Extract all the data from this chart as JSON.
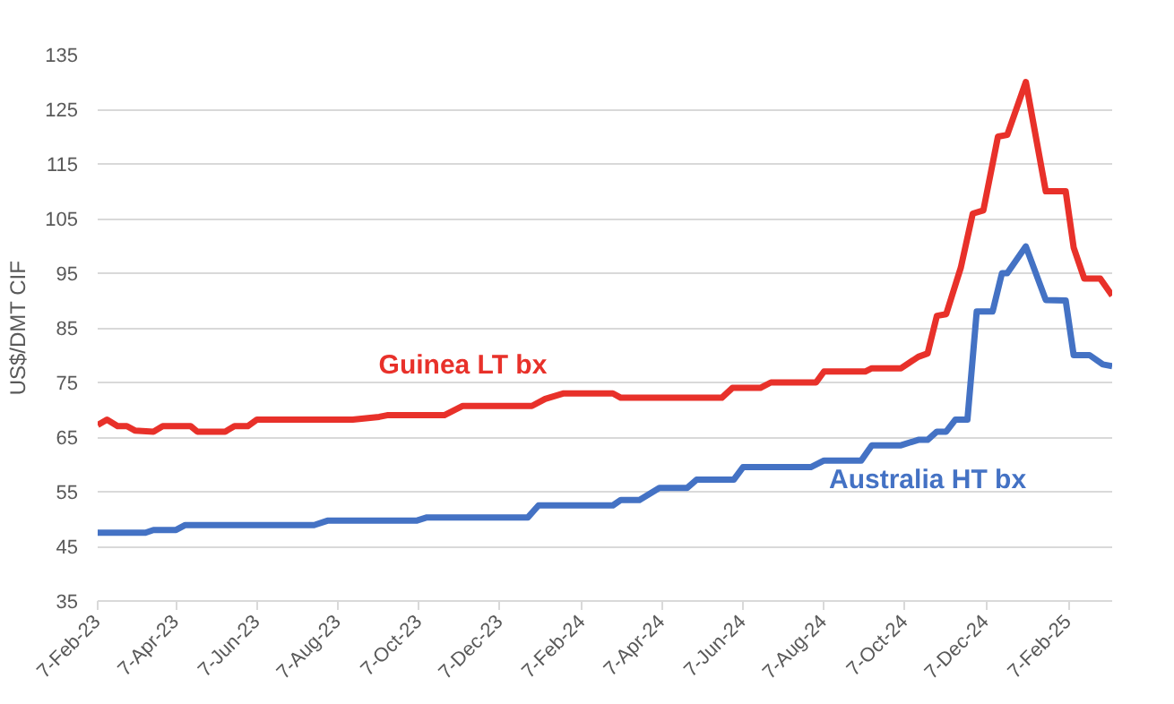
{
  "chart_data": {
    "type": "line",
    "ylabel": "US$/DMT CIF",
    "xlim": [
      "2023-02-07",
      "2025-03-12"
    ],
    "xticks": [
      {
        "value": "2023-02-07",
        "label": "7-Feb-23"
      },
      {
        "value": "2023-04-07",
        "label": "7-Apr-23"
      },
      {
        "value": "2023-06-07",
        "label": "7-Jun-23"
      },
      {
        "value": "2023-08-07",
        "label": "7-Aug-23"
      },
      {
        "value": "2023-10-07",
        "label": "7-Oct-23"
      },
      {
        "value": "2023-12-07",
        "label": "7-Dec-23"
      },
      {
        "value": "2024-02-07",
        "label": "7-Feb-24"
      },
      {
        "value": "2024-04-07",
        "label": "7-Apr-24"
      },
      {
        "value": "2024-06-07",
        "label": "7-Jun-24"
      },
      {
        "value": "2024-08-07",
        "label": "7-Aug-24"
      },
      {
        "value": "2024-10-07",
        "label": "7-Oct-24"
      },
      {
        "value": "2024-12-07",
        "label": "7-Dec-24"
      },
      {
        "value": "2025-02-07",
        "label": "7-Feb-25"
      }
    ],
    "ylim": [
      35,
      135
    ],
    "yticks": [
      35,
      45,
      55,
      65,
      75,
      85,
      95,
      105,
      115,
      125,
      135
    ],
    "grid": "y",
    "line_style": "solid",
    "marker": "none",
    "series": [
      {
        "name": "Guinea LT bx",
        "color": "#e8312a",
        "x": [
          "2023-02-07",
          "2023-02-14",
          "2023-02-22",
          "2023-03-01",
          "2023-03-07",
          "2023-03-21",
          "2023-03-28",
          "2023-04-18",
          "2023-04-23",
          "2023-05-14",
          "2023-05-21",
          "2023-05-31",
          "2023-06-07",
          "2023-08-18",
          "2023-09-07",
          "2023-09-13",
          "2023-10-26",
          "2023-11-09",
          "2023-12-31",
          "2024-01-10",
          "2024-01-24",
          "2024-03-01",
          "2024-03-07",
          "2024-05-22",
          "2024-05-30",
          "2024-06-20",
          "2024-06-28",
          "2024-08-01",
          "2024-08-07",
          "2024-09-07",
          "2024-09-12",
          "2024-10-04",
          "2024-10-17",
          "2024-10-24",
          "2024-10-31",
          "2024-11-07",
          "2024-11-18",
          "2024-11-27",
          "2024-12-05",
          "2024-12-16",
          "2024-12-23",
          "2025-01-06",
          "2025-01-21",
          "2025-02-05",
          "2025-02-11",
          "2025-02-19",
          "2025-03-03",
          "2025-03-12"
        ],
        "values": [
          67.2,
          68.2,
          67,
          67,
          66.2,
          66,
          67,
          67,
          66,
          66,
          67,
          67,
          68.2,
          68.2,
          68.7,
          69,
          69,
          70.7,
          70.7,
          72,
          73,
          73,
          72.2,
          72.2,
          74,
          74,
          75,
          75,
          77,
          77,
          77.6,
          77.6,
          79.7,
          80.3,
          87.2,
          87.5,
          96,
          105.9,
          106.5,
          120,
          120.3,
          130,
          110,
          110,
          99.7,
          94,
          94,
          90.9
        ]
      },
      {
        "name": "Australia HT bx",
        "color": "#4472c4",
        "x": [
          "2023-02-07",
          "2023-03-15",
          "2023-03-21",
          "2023-04-07",
          "2023-04-14",
          "2023-07-20",
          "2023-07-30",
          "2023-10-05",
          "2023-10-13",
          "2023-12-28",
          "2024-01-05",
          "2024-03-01",
          "2024-03-07",
          "2024-03-21",
          "2024-04-05",
          "2024-04-26",
          "2024-05-03",
          "2024-05-31",
          "2024-06-07",
          "2024-07-28",
          "2024-08-07",
          "2024-09-04",
          "2024-09-12",
          "2024-10-04",
          "2024-10-17",
          "2024-10-24",
          "2024-10-31",
          "2024-11-07",
          "2024-11-14",
          "2024-11-23",
          "2024-11-30",
          "2024-12-12",
          "2024-12-19",
          "2024-12-23",
          "2025-01-06",
          "2025-01-21",
          "2025-02-05",
          "2025-02-11",
          "2025-02-23",
          "2025-03-05",
          "2025-03-12"
        ],
        "values": [
          47.5,
          47.5,
          48,
          48,
          48.9,
          48.9,
          49.7,
          49.7,
          50.3,
          50.3,
          52.5,
          52.5,
          53.5,
          53.5,
          55.7,
          55.7,
          57.2,
          57.2,
          59.5,
          59.5,
          60.7,
          60.7,
          63.5,
          63.5,
          64.5,
          64.5,
          66,
          66,
          68.2,
          68.2,
          88,
          88,
          95,
          95,
          99.9,
          90.1,
          90,
          80,
          80,
          78.3,
          78
        ]
      }
    ]
  }
}
